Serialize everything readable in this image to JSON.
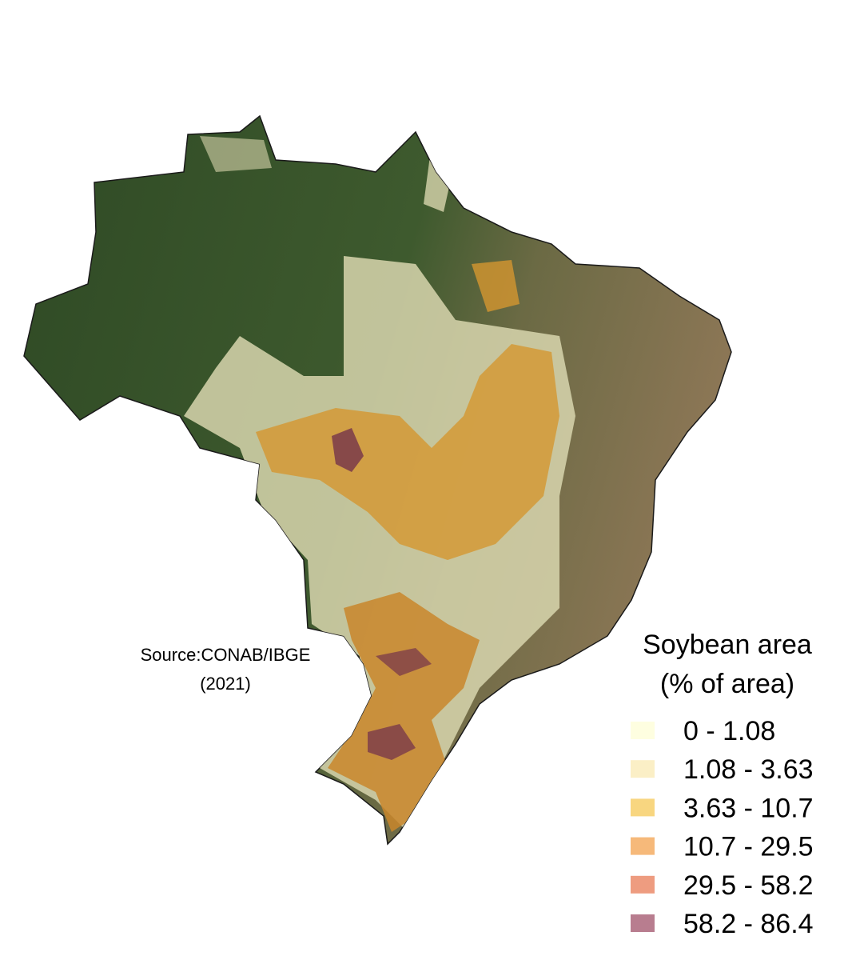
{
  "map": {
    "source": [
      "Source:CONAB/IBGE",
      "(2021)"
    ],
    "legend": {
      "title": [
        "Soybean area",
        "(% of area)"
      ],
      "items": [
        {
          "label": "0 - 1.08",
          "color": "#fefee0"
        },
        {
          "label": "1.08 - 3.63",
          "color": "#fbefc6"
        },
        {
          "label": "3.63 - 10.7",
          "color": "#f8d680"
        },
        {
          "label": "10.7 - 29.5",
          "color": "#f6b97a"
        },
        {
          "label": "29.5 - 58.2",
          "color": "#ee9c80"
        },
        {
          "label": "58.2 - 86.4",
          "color": "#b87d8f"
        }
      ]
    }
  }
}
